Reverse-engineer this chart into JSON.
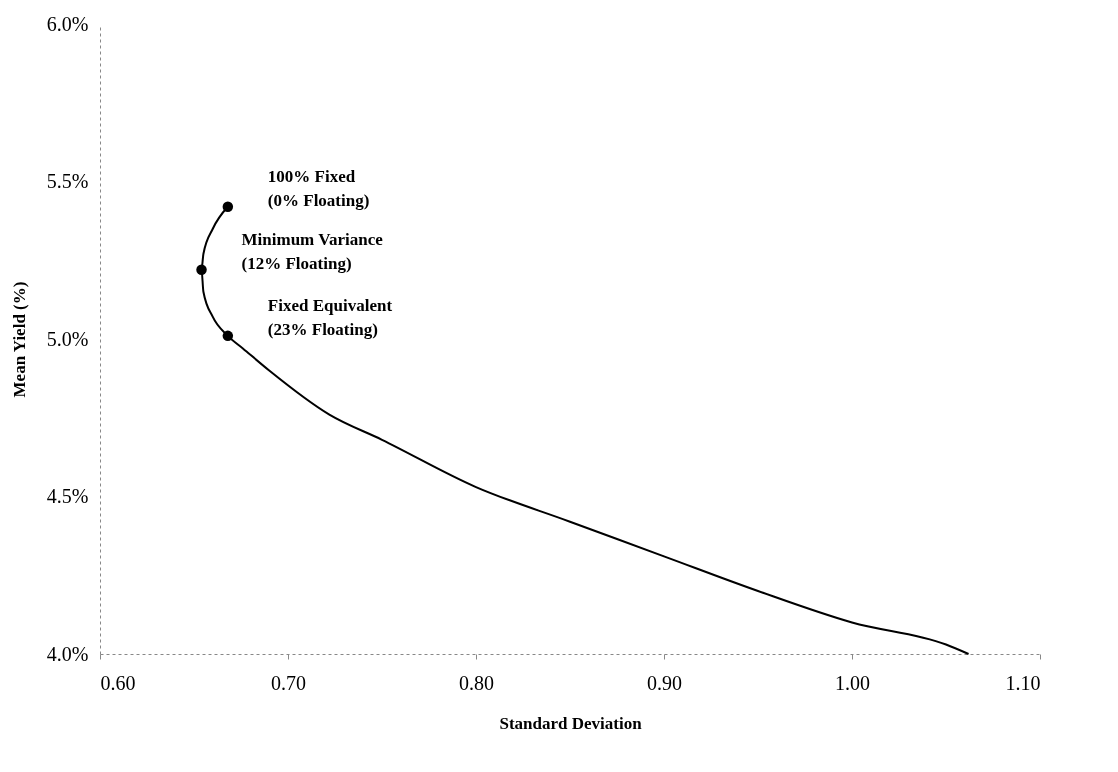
{
  "chart_data": {
    "type": "line",
    "xlabel": "Standard Deviation",
    "ylabel": "Mean Yield (%)",
    "xlim": [
      0.6,
      1.1
    ],
    "ylim": [
      4.0,
      6.0
    ],
    "xticks": [
      {
        "value": 0.6,
        "label": "0.60"
      },
      {
        "value": 0.7,
        "label": "0.70"
      },
      {
        "value": 0.8,
        "label": "0.80"
      },
      {
        "value": 0.9,
        "label": "0.90"
      },
      {
        "value": 1.0,
        "label": "1.00"
      },
      {
        "value": 1.1,
        "label": "1.10"
      }
    ],
    "yticks": [
      {
        "value": 4.0,
        "label": "4.0%"
      },
      {
        "value": 4.5,
        "label": "4.5%"
      },
      {
        "value": 5.0,
        "label": "5.0%"
      },
      {
        "value": 5.5,
        "label": "5.5%"
      },
      {
        "value": 6.0,
        "label": "6.0%"
      }
    ],
    "grid": false,
    "series": [
      {
        "type": "line",
        "color": "#000000",
        "marker": "none",
        "line_style": "solid",
        "x": [
          0.668,
          0.66,
          0.655,
          0.654,
          0.655,
          0.66,
          0.668,
          0.676,
          0.69,
          0.722,
          0.75,
          0.8,
          0.85,
          0.9,
          0.95,
          1.0,
          1.05,
          1.062
        ],
        "values": [
          5.42,
          5.35,
          5.27,
          5.22,
          5.15,
          5.07,
          5.01,
          4.97,
          4.9,
          4.76,
          4.68,
          4.53,
          4.42,
          4.31,
          4.2,
          4.1,
          4.03,
          4.0
        ]
      },
      {
        "type": "scatter",
        "color": "#000000",
        "marker": "circle",
        "x": [
          0.668,
          0.654,
          0.668
        ],
        "values": [
          5.42,
          5.22,
          5.01
        ]
      }
    ],
    "annotations": [
      "100% Fixed\n(0% Floating)",
      "Minimum Variance\n(12% Floating)",
      "Fixed Equivalent\n(23% Floating)"
    ]
  }
}
